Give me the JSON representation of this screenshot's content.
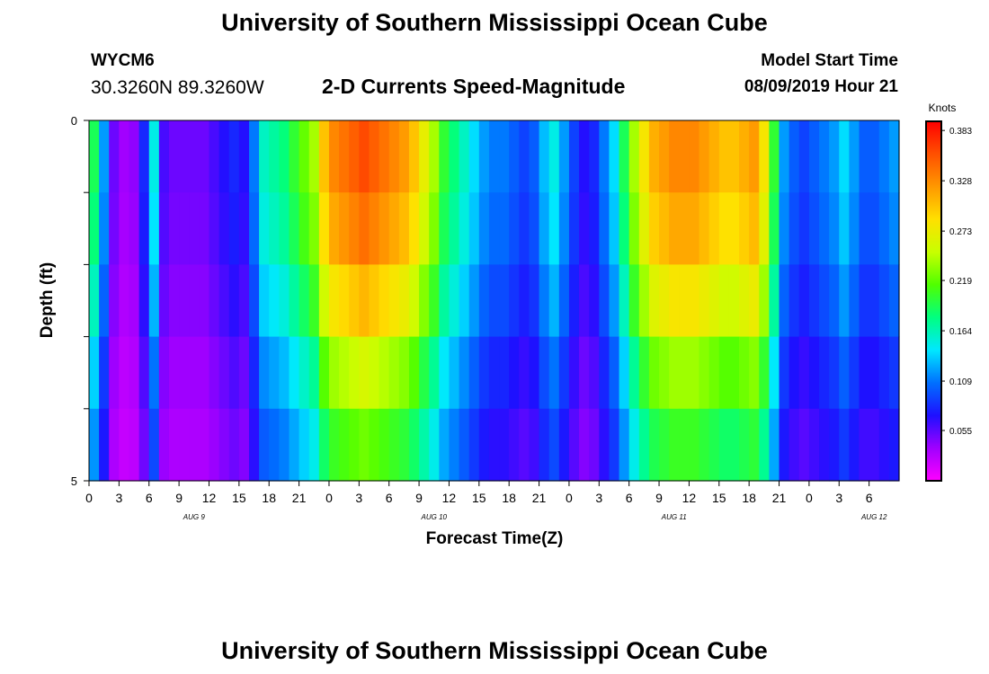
{
  "header": {
    "title": "University of Southern Mississippi Ocean Cube",
    "station_id": "WYCM6",
    "station_coords": "30.3260N 89.3260W",
    "subtitle": "2-D Currents Speed-Magnitude",
    "model_label": "Model Start Time",
    "model_time": "08/09/2019 Hour 21"
  },
  "footer": {
    "title": "University of Southern Mississippi Ocean Cube"
  },
  "chart_data": {
    "type": "heatmap",
    "title": "2-D Currents Speed-Magnitude",
    "xlabel": "Forecast Time(Z)",
    "ylabel": "Depth (ft)",
    "x_range_hours": [
      0,
      81
    ],
    "x_tick_labels": [
      "0",
      "3",
      "6",
      "9",
      "12",
      "15",
      "18",
      "21",
      "0",
      "3",
      "6",
      "9",
      "12",
      "15",
      "18",
      "21",
      "0",
      "3",
      "6",
      "9",
      "12",
      "15",
      "18",
      "21",
      "0",
      "3",
      "6"
    ],
    "day_labels": [
      {
        "label": "AUG 9",
        "hour": 10.5
      },
      {
        "label": "AUG 10",
        "hour": 34.5
      },
      {
        "label": "AUG 11",
        "hour": 58.5
      },
      {
        "label": "AUG 12",
        "hour": 78.5
      }
    ],
    "y_range": [
      0,
      5
    ],
    "y_tick_labels": [
      "0",
      "5"
    ],
    "depth_rows": 5,
    "colorbar": {
      "unit": "Knots",
      "tick_labels": [
        "0.383",
        "0.328",
        "0.273",
        "0.219",
        "0.164",
        "0.109",
        "0.055"
      ],
      "ticks": [
        0.383,
        0.328,
        0.273,
        0.219,
        0.164,
        0.109,
        0.055
      ],
      "min": 0.0,
      "max": 0.393,
      "colors": [
        "#ff00ff",
        "#a000ff",
        "#1e10ff",
        "#0070ff",
        "#00e8ff",
        "#00ff80",
        "#50ff00",
        "#c8ff00",
        "#ffe000",
        "#ff9800",
        "#ff5000",
        "#ff0000"
      ]
    },
    "speed_profile_knots": [
      [
        0,
        0.19
      ],
      [
        1,
        0.12
      ],
      [
        2,
        0.05
      ],
      [
        3,
        0.035
      ],
      [
        4,
        0.04
      ],
      [
        5,
        0.08
      ],
      [
        6,
        0.15
      ],
      [
        7,
        0.06
      ],
      [
        8,
        0.05
      ],
      [
        9,
        0.05
      ],
      [
        10,
        0.05
      ],
      [
        11,
        0.05
      ],
      [
        12,
        0.06
      ],
      [
        13,
        0.07
      ],
      [
        14,
        0.08
      ],
      [
        15,
        0.07
      ],
      [
        16,
        0.11
      ],
      [
        17,
        0.16
      ],
      [
        18,
        0.17
      ],
      [
        19,
        0.18
      ],
      [
        20,
        0.2
      ],
      [
        21,
        0.22
      ],
      [
        22,
        0.24
      ],
      [
        23,
        0.3
      ],
      [
        24,
        0.33
      ],
      [
        25,
        0.34
      ],
      [
        26,
        0.35
      ],
      [
        27,
        0.36
      ],
      [
        28,
        0.35
      ],
      [
        29,
        0.34
      ],
      [
        30,
        0.33
      ],
      [
        31,
        0.32
      ],
      [
        32,
        0.3
      ],
      [
        33,
        0.27
      ],
      [
        34,
        0.24
      ],
      [
        35,
        0.2
      ],
      [
        36,
        0.18
      ],
      [
        37,
        0.16
      ],
      [
        38,
        0.14
      ],
      [
        39,
        0.12
      ],
      [
        40,
        0.11
      ],
      [
        41,
        0.11
      ],
      [
        42,
        0.1
      ],
      [
        43,
        0.09
      ],
      [
        44,
        0.1
      ],
      [
        45,
        0.13
      ],
      [
        46,
        0.15
      ],
      [
        47,
        0.12
      ],
      [
        48,
        0.09
      ],
      [
        49,
        0.07
      ],
      [
        50,
        0.08
      ],
      [
        51,
        0.11
      ],
      [
        52,
        0.14
      ],
      [
        53,
        0.19
      ],
      [
        54,
        0.24
      ],
      [
        55,
        0.28
      ],
      [
        56,
        0.31
      ],
      [
        57,
        0.32
      ],
      [
        58,
        0.33
      ],
      [
        59,
        0.33
      ],
      [
        60,
        0.33
      ],
      [
        61,
        0.32
      ],
      [
        62,
        0.31
      ],
      [
        63,
        0.3
      ],
      [
        64,
        0.3
      ],
      [
        65,
        0.31
      ],
      [
        66,
        0.32
      ],
      [
        67,
        0.28
      ],
      [
        68,
        0.2
      ],
      [
        69,
        0.12
      ],
      [
        70,
        0.1
      ],
      [
        71,
        0.09
      ],
      [
        72,
        0.1
      ],
      [
        73,
        0.11
      ],
      [
        74,
        0.12
      ],
      [
        75,
        0.14
      ],
      [
        76,
        0.12
      ],
      [
        77,
        0.1
      ],
      [
        78,
        0.1
      ],
      [
        79,
        0.11
      ],
      [
        80,
        0.12
      ],
      [
        81,
        0.13
      ]
    ],
    "depth_row_factors": [
      1.0,
      0.95,
      0.85,
      0.72,
      0.62
    ],
    "grid": false
  }
}
